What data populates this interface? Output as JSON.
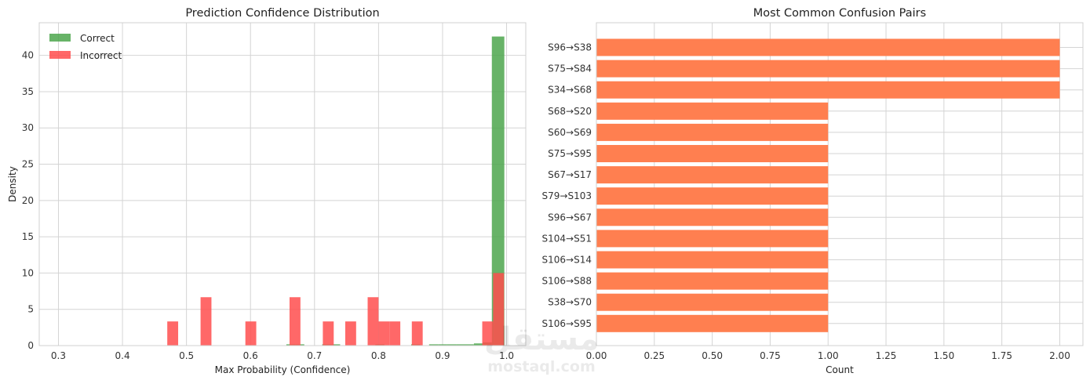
{
  "chart_data": [
    {
      "type": "histogram",
      "title": "Prediction Confidence Distribution",
      "xlabel": "Max Probability (Confidence)",
      "ylabel": "Density",
      "xlim": [
        0.27,
        1.03
      ],
      "ylim": [
        0,
        44.5
      ],
      "xticks": [
        "0.3",
        "0.4",
        "0.5",
        "0.6",
        "0.7",
        "0.8",
        "0.9",
        "1.0"
      ],
      "yticks": [
        "0",
        "5",
        "10",
        "15",
        "20",
        "25",
        "30",
        "35",
        "40"
      ],
      "grid": true,
      "legend_position": "top-left",
      "series": [
        {
          "name": "Correct",
          "color": "#4CA64C",
          "bins": [
            {
              "x0": 0.656,
              "x1": 0.67,
              "y": 0.18
            },
            {
              "x0": 0.67,
              "x1": 0.684,
              "y": 0.18
            },
            {
              "x0": 0.712,
              "x1": 0.726,
              "y": 0.18
            },
            {
              "x0": 0.726,
              "x1": 0.74,
              "y": 0.18
            },
            {
              "x0": 0.795,
              "x1": 0.809,
              "y": 0.18
            },
            {
              "x0": 0.851,
              "x1": 0.865,
              "y": 0.18
            },
            {
              "x0": 0.879,
              "x1": 0.893,
              "y": 0.18
            },
            {
              "x0": 0.893,
              "x1": 0.907,
              "y": 0.18
            },
            {
              "x0": 0.907,
              "x1": 0.921,
              "y": 0.18
            },
            {
              "x0": 0.921,
              "x1": 0.935,
              "y": 0.18
            },
            {
              "x0": 0.935,
              "x1": 0.949,
              "y": 0.18
            },
            {
              "x0": 0.949,
              "x1": 0.963,
              "y": 0.3
            },
            {
              "x0": 0.963,
              "x1": 0.977,
              "y": 0.45
            },
            {
              "x0": 0.977,
              "x1": 0.9965,
              "y": 42.6
            }
          ]
        },
        {
          "name": "Incorrect",
          "color": "#FF4D4D",
          "bins": [
            {
              "x0": 0.47,
              "x1": 0.487,
              "y": 3.33
            },
            {
              "x0": 0.522,
              "x1": 0.539,
              "y": 6.67
            },
            {
              "x0": 0.592,
              "x1": 0.609,
              "y": 3.33
            },
            {
              "x0": 0.661,
              "x1": 0.678,
              "y": 6.67
            },
            {
              "x0": 0.713,
              "x1": 0.73,
              "y": 3.33
            },
            {
              "x0": 0.748,
              "x1": 0.765,
              "y": 3.33
            },
            {
              "x0": 0.783,
              "x1": 0.8,
              "y": 6.67
            },
            {
              "x0": 0.8,
              "x1": 0.817,
              "y": 3.33
            },
            {
              "x0": 0.817,
              "x1": 0.834,
              "y": 3.33
            },
            {
              "x0": 0.852,
              "x1": 0.869,
              "y": 3.33
            },
            {
              "x0": 0.962,
              "x1": 0.979,
              "y": 3.33
            },
            {
              "x0": 0.979,
              "x1": 0.996,
              "y": 10.0
            }
          ]
        }
      ]
    },
    {
      "type": "bar",
      "orientation": "horizontal",
      "title": "Most Common Confusion Pairs",
      "xlabel": "Count",
      "ylabel": "",
      "xlim": [
        0,
        2.1
      ],
      "xticks": [
        "0.00",
        "0.25",
        "0.50",
        "0.75",
        "1.00",
        "1.25",
        "1.50",
        "1.75",
        "2.00"
      ],
      "grid": true,
      "color": "#FF7F50",
      "categories": [
        "S96→S38",
        "S75→S84",
        "S34→S68",
        "S68→S20",
        "S60→S69",
        "S75→S95",
        "S67→S17",
        "S79→S103",
        "S96→S67",
        "S104→S51",
        "S106→S14",
        "S106→S88",
        "S38→S70",
        "S106→S95"
      ],
      "values": [
        2,
        2,
        2,
        1,
        1,
        1,
        1,
        1,
        1,
        1,
        1,
        1,
        1,
        1
      ]
    }
  ],
  "watermark": {
    "text": "مستقل",
    "subtext": "mostaql.com"
  }
}
